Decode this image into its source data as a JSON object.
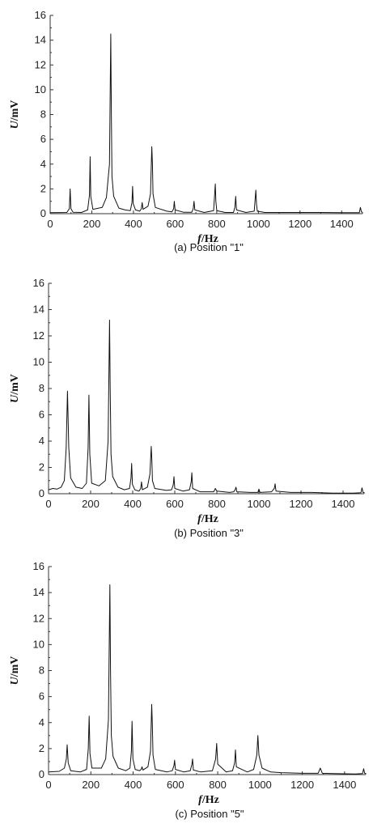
{
  "chart_data": [
    {
      "type": "line",
      "caption": "(a) Position \"1\"",
      "xlabel_var": "f",
      "xlabel_unit": "/Hz",
      "ylabel_var": "U",
      "ylabel_unit": "/mV",
      "xlim": [
        0,
        1500
      ],
      "ylim": [
        0,
        16
      ],
      "xticks": [
        "0",
        "200",
        "400",
        "600",
        "800",
        "1000",
        "1200",
        "1400"
      ],
      "yticks": [
        "0",
        "2",
        "4",
        "6",
        "8",
        "10",
        "12",
        "14",
        "16"
      ],
      "grid": false,
      "series": [
        {
          "x": [
            0,
            80,
            92,
            96,
            100,
            110,
            150,
            180,
            189,
            192,
            195,
            205,
            250,
            270,
            285,
            291,
            294,
            297,
            305,
            330,
            360,
            385,
            393,
            396,
            399,
            410,
            430,
            438,
            442,
            446,
            470,
            482,
            488,
            491,
            494,
            505,
            560,
            585,
            593,
            596,
            600,
            640,
            680,
            687,
            691,
            695,
            740,
            785,
            793,
            796,
            800,
            840,
            880,
            887,
            891,
            895,
            940,
            980,
            988,
            991,
            995,
            1030,
            1100,
            1200,
            1300,
            1400,
            1485,
            1490,
            1495,
            1500
          ],
          "y": [
            0.08,
            0.1,
            0.4,
            2.0,
            0.4,
            0.12,
            0.1,
            0.3,
            1.5,
            4.6,
            1.4,
            0.35,
            0.5,
            1.3,
            4.0,
            14.5,
            7.5,
            3.0,
            1.4,
            0.45,
            0.3,
            0.25,
            0.9,
            2.2,
            0.8,
            0.3,
            0.2,
            0.4,
            0.9,
            0.35,
            0.6,
            1.6,
            5.4,
            4.0,
            1.6,
            0.5,
            0.2,
            0.15,
            0.4,
            1.0,
            0.3,
            0.12,
            0.12,
            0.4,
            1.0,
            0.3,
            0.1,
            0.25,
            2.4,
            1.0,
            0.25,
            0.1,
            0.1,
            0.5,
            1.4,
            0.3,
            0.1,
            0.2,
            1.9,
            0.8,
            0.2,
            0.1,
            0.1,
            0.1,
            0.1,
            0.08,
            0.08,
            0.5,
            0.15,
            0.1
          ]
        }
      ]
    },
    {
      "type": "line",
      "caption": "(b) Position \"3\"",
      "xlabel_var": "f",
      "xlabel_unit": "/Hz",
      "ylabel_var": "U",
      "ylabel_unit": "/mV",
      "xlim": [
        0,
        1500
      ],
      "ylim": [
        0,
        16
      ],
      "xticks": [
        "0",
        "200",
        "400",
        "600",
        "800",
        "1000",
        "1200",
        "1400"
      ],
      "yticks": [
        "0",
        "2",
        "4",
        "6",
        "8",
        "10",
        "12",
        "14",
        "16"
      ],
      "grid": false,
      "series": [
        {
          "x": [
            0,
            20,
            40,
            60,
            75,
            84,
            90,
            96,
            105,
            130,
            160,
            180,
            188,
            192,
            196,
            205,
            240,
            270,
            283,
            290,
            293,
            297,
            305,
            330,
            360,
            385,
            392,
            395,
            399,
            410,
            430,
            438,
            442,
            446,
            470,
            482,
            488,
            491,
            494,
            505,
            560,
            585,
            593,
            596,
            600,
            640,
            670,
            678,
            681,
            685,
            720,
            785,
            793,
            796,
            800,
            860,
            880,
            887,
            891,
            895,
            960,
            995,
            1000,
            1005,
            1060,
            1073,
            1077,
            1081,
            1150,
            1250,
            1350,
            1450,
            1485,
            1490,
            1495,
            1500
          ],
          "y": [
            0.3,
            0.4,
            0.35,
            0.5,
            1.0,
            3.5,
            7.8,
            3.5,
            1.2,
            0.5,
            0.4,
            0.8,
            3.5,
            7.5,
            3.0,
            0.8,
            0.6,
            1.0,
            4.0,
            13.2,
            8.0,
            3.0,
            1.3,
            0.5,
            0.3,
            0.4,
            1.2,
            2.3,
            0.7,
            0.3,
            0.2,
            0.4,
            0.9,
            0.3,
            0.5,
            1.5,
            3.6,
            2.5,
            1.0,
            0.4,
            0.25,
            0.3,
            0.7,
            1.3,
            0.4,
            0.2,
            0.3,
            0.9,
            1.6,
            0.4,
            0.15,
            0.15,
            0.4,
            0.3,
            0.2,
            0.1,
            0.15,
            0.3,
            0.5,
            0.15,
            0.1,
            0.1,
            0.35,
            0.1,
            0.15,
            0.4,
            0.75,
            0.2,
            0.1,
            0.1,
            0.05,
            0.05,
            0.08,
            0.45,
            0.1,
            0.08
          ]
        }
      ]
    },
    {
      "type": "line",
      "caption": "(c) Position \"5\"",
      "xlabel_var": "f",
      "xlabel_unit": "/Hz",
      "ylabel_var": "U",
      "ylabel_unit": "/mV",
      "xlim": [
        0,
        1500
      ],
      "ylim": [
        0,
        16
      ],
      "xticks": [
        "0",
        "200",
        "400",
        "600",
        "800",
        "1000",
        "1200",
        "1400"
      ],
      "yticks": [
        "0",
        "2",
        "4",
        "6",
        "8",
        "10",
        "12",
        "14",
        "16"
      ],
      "grid": false,
      "series": [
        {
          "x": [
            0,
            50,
            75,
            84,
            88,
            93,
            105,
            150,
            180,
            188,
            192,
            196,
            205,
            250,
            270,
            283,
            290,
            293,
            297,
            305,
            330,
            365,
            385,
            392,
            395,
            399,
            410,
            430,
            438,
            442,
            446,
            470,
            482,
            488,
            491,
            494,
            505,
            560,
            585,
            593,
            596,
            600,
            640,
            670,
            678,
            681,
            685,
            720,
            775,
            790,
            795,
            800,
            840,
            870,
            880,
            884,
            888,
            940,
            970,
            985,
            990,
            995,
            1010,
            1050,
            1100,
            1200,
            1275,
            1285,
            1295,
            1350,
            1450,
            1485,
            1490,
            1495,
            1500
          ],
          "y": [
            0.2,
            0.25,
            0.5,
            1.2,
            2.3,
            0.9,
            0.3,
            0.2,
            0.4,
            2.0,
            4.5,
            1.6,
            0.5,
            0.5,
            1.2,
            4.2,
            14.6,
            8.0,
            3.0,
            1.4,
            0.5,
            0.3,
            0.5,
            1.8,
            4.1,
            1.2,
            0.4,
            0.3,
            0.4,
            0.6,
            0.35,
            0.6,
            1.8,
            5.4,
            3.8,
            1.5,
            0.4,
            0.2,
            0.3,
            0.7,
            1.1,
            0.4,
            0.2,
            0.3,
            0.8,
            1.2,
            0.35,
            0.2,
            0.3,
            1.2,
            2.4,
            0.8,
            0.2,
            0.3,
            0.9,
            1.9,
            0.6,
            0.2,
            0.4,
            1.5,
            3.0,
            1.5,
            0.5,
            0.2,
            0.15,
            0.1,
            0.1,
            0.5,
            0.1,
            0.08,
            0.05,
            0.08,
            0.45,
            0.1,
            0.08
          ]
        }
      ]
    }
  ]
}
